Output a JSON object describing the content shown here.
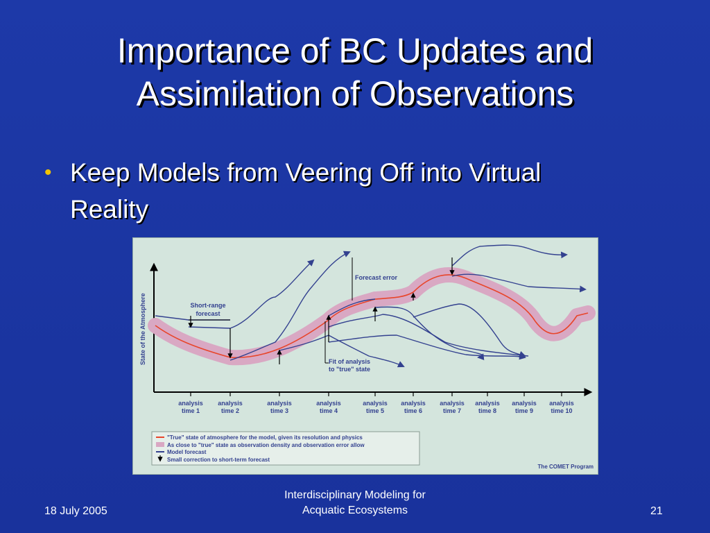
{
  "slide": {
    "title_line1": "Importance of BC Updates and",
    "title_line2": "Assimilation of Observations",
    "bullet": {
      "glyph": "•",
      "line1": "Keep Models from Veering Off into Virtual",
      "line2": "Reality"
    }
  },
  "figure": {
    "y_axis_label": "State of the Atmosphere",
    "annotations": {
      "short_range_line1": "Short-range",
      "short_range_line2": "forecast",
      "forecast_error": "Forecast error",
      "fit_line1": "Fit of analysis",
      "fit_line2": "to \"true\" state"
    },
    "analysis_times": [
      {
        "line1": "analysis",
        "line2": "time 1"
      },
      {
        "line1": "analysis",
        "line2": "time 2"
      },
      {
        "line1": "analysis",
        "line2": "time 3"
      },
      {
        "line1": "analysis",
        "line2": "time 4"
      },
      {
        "line1": "analysis",
        "line2": "time 5"
      },
      {
        "line1": "analysis",
        "line2": "time 6"
      },
      {
        "line1": "analysis",
        "line2": "time 7"
      },
      {
        "line1": "analysis",
        "line2": "time 8"
      },
      {
        "line1": "analysis",
        "line2": "time 9"
      },
      {
        "line1": "analysis",
        "line2": "time 10"
      }
    ],
    "legend": {
      "true_state": "\"True\" state of atmosphere for the model, given its resolution and physics",
      "band": "As close to \"true\" state as observation density and observation error allow",
      "model_forecast": "Model forecast",
      "correction": "Small correction to short-term forecast"
    },
    "credit": "The COMET Program",
    "colors": {
      "true_state": "#e8452a",
      "band": "#d9a8c3",
      "forecast": "#33418f",
      "background": "#d4e5dd"
    }
  },
  "footer": {
    "date": "18 July 2005",
    "center_line1": "Interdisciplinary Modeling for",
    "center_line2": "Acquatic Ecosystems",
    "page_number": "21"
  }
}
